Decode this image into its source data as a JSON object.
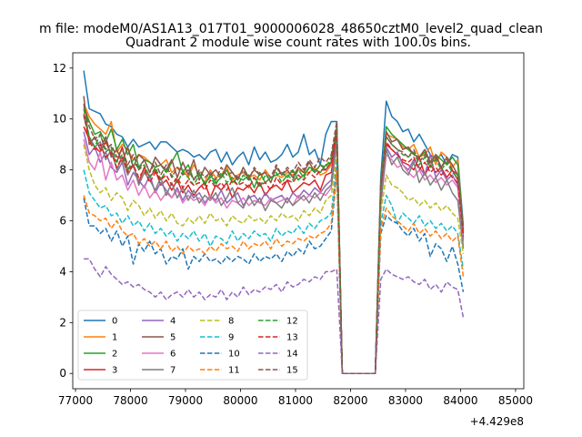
{
  "suptitle": "m file: modeM0/AS1A13_017T01_9000006028_48650cztM0_level2_quad_clean",
  "chart_data": {
    "type": "line",
    "title": "Quadrant 2 module wise count rates with 100.0s bins.",
    "xlabel": "",
    "ylabel": "",
    "x_offset_text": "+4.429e8",
    "xlim": [
      76950,
      85150
    ],
    "ylim": [
      -0.6,
      12.6
    ],
    "xticks": [
      77000,
      78000,
      79000,
      80000,
      81000,
      82000,
      83000,
      84000,
      85000
    ],
    "yticks": [
      0,
      2,
      4,
      6,
      8,
      10,
      12
    ],
    "legend": {
      "position": "lower-left",
      "ncol": 4
    },
    "x_start": 77150,
    "x_step": 100,
    "series": [
      {
        "name": "0",
        "color": "#1f77b4",
        "style": "solid",
        "values": [
          11.9,
          10.4,
          10.3,
          10.2,
          9.8,
          9.7,
          9.4,
          9.3,
          8.9,
          9.2,
          8.9,
          9.0,
          9.1,
          8.8,
          9.1,
          9.1,
          8.9,
          8.7,
          8.8,
          8.7,
          8.5,
          8.6,
          8.4,
          8.7,
          8.8,
          8.3,
          8.7,
          8.2,
          8.5,
          8.7,
          8.2,
          8.9,
          8.4,
          8.7,
          8.3,
          8.4,
          8.6,
          9.0,
          8.5,
          8.7,
          9.4,
          8.6,
          8.8,
          8.2,
          9.4,
          9.9,
          9.9,
          0,
          0,
          0,
          0,
          0,
          0,
          0,
          7.7,
          10.7,
          10.1,
          9.9,
          9.5,
          9.6,
          9.1,
          9.4,
          9.0,
          8.6,
          8.4,
          8.6,
          8.2,
          8.6,
          8.5,
          5.8
        ]
      },
      {
        "name": "1",
        "color": "#ff7f0e",
        "style": "solid",
        "values": [
          10.6,
          10.1,
          9.8,
          9.6,
          9.4,
          9.9,
          8.7,
          9.0,
          8.8,
          8.4,
          8.6,
          8.5,
          8.3,
          8.1,
          8.2,
          8.4,
          7.9,
          8.1,
          8.0,
          7.7,
          8.2,
          7.8,
          7.5,
          8.0,
          7.7,
          7.8,
          8.1,
          7.6,
          7.8,
          7.9,
          7.7,
          7.8,
          7.6,
          8.0,
          7.7,
          7.8,
          7.7,
          7.9,
          7.8,
          8.0,
          7.9,
          7.9,
          8.1,
          7.8,
          7.9,
          8.2,
          9.6,
          0,
          0,
          0,
          0,
          0,
          0,
          0,
          7.3,
          9.4,
          9.3,
          9.2,
          8.9,
          8.8,
          9.0,
          8.5,
          8.6,
          8.9,
          8.2,
          8.7,
          8.5,
          8.1,
          8.4,
          5.5
        ]
      },
      {
        "name": "2",
        "color": "#2ca02c",
        "style": "solid",
        "values": [
          10.5,
          9.9,
          9.4,
          9.5,
          9.1,
          9.6,
          8.8,
          9.2,
          8.6,
          9.0,
          8.1,
          8.4,
          8.3,
          8.1,
          8.2,
          7.9,
          8.3,
          8.7,
          7.9,
          8.2,
          7.6,
          7.9,
          7.4,
          7.8,
          7.5,
          7.7,
          8.0,
          7.5,
          7.7,
          7.6,
          7.8,
          7.3,
          7.9,
          7.5,
          7.7,
          7.8,
          7.9,
          7.7,
          8.0,
          7.6,
          7.8,
          8.1,
          8.0,
          7.9,
          8.2,
          8.3,
          9.4,
          0,
          0,
          0,
          0,
          0,
          0,
          0,
          7.2,
          9.7,
          9.4,
          9.2,
          9.0,
          8.8,
          8.6,
          8.5,
          8.7,
          8.3,
          8.6,
          8.4,
          8.2,
          8.5,
          8.2,
          5.6
        ]
      },
      {
        "name": "3",
        "color": "#d62728",
        "style": "solid",
        "values": [
          9.7,
          9.2,
          8.9,
          8.7,
          9.1,
          8.6,
          8.3,
          8.9,
          8.0,
          8.2,
          7.5,
          8.1,
          7.7,
          8.0,
          7.4,
          7.6,
          7.2,
          7.6,
          7.1,
          7.4,
          7.0,
          7.3,
          7.5,
          6.9,
          7.4,
          7.2,
          7.5,
          6.9,
          7.3,
          7.2,
          7.4,
          7.1,
          7.5,
          7.0,
          7.3,
          7.4,
          7.2,
          7.6,
          7.1,
          7.3,
          7.5,
          7.4,
          7.6,
          7.2,
          7.8,
          7.9,
          9.3,
          0,
          0,
          0,
          0,
          0,
          0,
          0,
          6.9,
          9.0,
          8.8,
          8.6,
          8.3,
          8.2,
          8.0,
          8.5,
          7.8,
          8.2,
          7.9,
          8.1,
          7.7,
          8.0,
          7.6,
          5.3
        ]
      },
      {
        "name": "4",
        "color": "#9467bd",
        "style": "solid",
        "values": [
          9.5,
          8.6,
          8.9,
          8.3,
          8.7,
          8.1,
          7.9,
          8.3,
          7.4,
          7.9,
          7.6,
          7.3,
          7.8,
          7.1,
          7.5,
          7.2,
          6.9,
          7.3,
          6.8,
          7.2,
          6.9,
          7.1,
          6.7,
          7.0,
          6.8,
          7.2,
          6.7,
          6.9,
          7.1,
          6.6,
          6.9,
          7.0,
          6.7,
          7.1,
          6.8,
          6.9,
          7.0,
          6.7,
          7.1,
          6.9,
          7.2,
          7.0,
          7.3,
          7.1,
          7.4,
          7.6,
          9.2,
          0,
          0,
          0,
          0,
          0,
          0,
          0,
          6.8,
          8.9,
          8.5,
          8.7,
          8.2,
          8.0,
          8.4,
          8.1,
          7.8,
          8.6,
          7.7,
          8.0,
          7.6,
          7.8,
          7.4,
          5.2
        ]
      },
      {
        "name": "5",
        "color": "#8c564b",
        "style": "solid",
        "values": [
          10.9,
          9.0,
          9.3,
          8.8,
          9.3,
          8.5,
          8.8,
          8.3,
          8.9,
          8.1,
          8.6,
          8.4,
          7.9,
          8.5,
          8.2,
          8.0,
          8.4,
          7.7,
          8.3,
          7.8,
          8.4,
          7.6,
          8.1,
          7.8,
          8.0,
          7.7,
          8.2,
          7.9,
          7.6,
          8.1,
          7.7,
          8.0,
          7.8,
          7.9,
          7.5,
          8.1,
          7.8,
          8.0,
          7.7,
          8.1,
          7.9,
          8.3,
          7.9,
          8.2,
          8.0,
          8.3,
          9.7,
          0,
          0,
          0,
          0,
          0,
          0,
          0,
          7.4,
          9.5,
          9.1,
          9.2,
          8.8,
          8.9,
          8.6,
          8.5,
          8.8,
          8.3,
          8.6,
          8.1,
          8.5,
          8.2,
          7.8,
          5.5
        ]
      },
      {
        "name": "6",
        "color": "#e377c2",
        "style": "solid",
        "values": [
          9.2,
          8.3,
          8.0,
          8.7,
          7.6,
          8.3,
          7.6,
          7.8,
          7.2,
          7.6,
          7.0,
          7.4,
          6.9,
          7.2,
          6.8,
          7.1,
          6.9,
          7.2,
          6.7,
          7.0,
          6.8,
          6.9,
          6.6,
          7.0,
          6.7,
          6.9,
          6.5,
          6.8,
          6.7,
          6.9,
          6.6,
          6.8,
          6.7,
          6.6,
          6.9,
          6.7,
          6.8,
          6.9,
          6.6,
          7.0,
          6.8,
          7.0,
          6.9,
          7.1,
          7.0,
          7.3,
          9.0,
          0,
          0,
          0,
          0,
          0,
          0,
          0,
          6.6,
          8.6,
          8.4,
          8.1,
          8.2,
          7.9,
          7.7,
          8.0,
          7.6,
          7.8,
          7.5,
          7.7,
          7.4,
          7.6,
          7.3,
          5.0
        ]
      },
      {
        "name": "7",
        "color": "#7f7f7f",
        "style": "solid",
        "values": [
          10.1,
          9.3,
          8.9,
          9.1,
          8.4,
          8.8,
          8.0,
          8.5,
          7.8,
          8.2,
          7.4,
          7.9,
          7.6,
          7.2,
          7.7,
          7.0,
          7.5,
          6.9,
          7.3,
          6.8,
          7.2,
          6.7,
          7.0,
          6.8,
          7.1,
          6.6,
          6.9,
          7.3,
          6.7,
          6.5,
          7.0,
          6.6,
          6.9,
          6.4,
          6.8,
          6.7,
          6.5,
          6.9,
          6.6,
          6.8,
          7.0,
          6.7,
          7.1,
          6.8,
          7.2,
          7.4,
          9.1,
          0,
          0,
          0,
          0,
          0,
          0,
          0,
          6.7,
          8.8,
          8.2,
          8.5,
          8.0,
          7.8,
          8.3,
          7.5,
          7.9,
          7.4,
          7.7,
          7.2,
          7.6,
          7.1,
          6.8,
          4.9
        ]
      },
      {
        "name": "8",
        "color": "#bcbd22",
        "style": "dashed",
        "values": [
          9.0,
          8.0,
          7.4,
          7.1,
          7.3,
          6.8,
          7.1,
          6.9,
          6.4,
          6.8,
          6.6,
          6.2,
          6.5,
          6.1,
          6.4,
          6.0,
          6.3,
          5.9,
          5.8,
          6.1,
          5.9,
          6.2,
          5.9,
          6.3,
          6.0,
          6.1,
          5.8,
          6.2,
          6.0,
          5.9,
          6.2,
          6.0,
          6.1,
          5.9,
          6.2,
          6.0,
          6.3,
          6.1,
          6.2,
          6.0,
          6.4,
          6.2,
          6.5,
          6.3,
          6.8,
          7.0,
          8.6,
          0,
          0,
          0,
          0,
          0,
          0,
          0,
          6.3,
          7.8,
          7.4,
          7.3,
          7.1,
          6.8,
          6.9,
          6.6,
          6.8,
          6.5,
          6.7,
          6.4,
          6.6,
          6.3,
          6.1,
          4.7
        ]
      },
      {
        "name": "9",
        "color": "#17becf",
        "style": "dashed",
        "values": [
          8.0,
          7.1,
          6.8,
          6.5,
          6.6,
          6.2,
          6.3,
          5.9,
          6.2,
          5.8,
          6.0,
          5.6,
          5.9,
          5.5,
          5.7,
          5.4,
          5.6,
          5.2,
          5.5,
          5.3,
          5.6,
          5.2,
          5.5,
          5.0,
          5.4,
          5.3,
          5.1,
          5.6,
          5.2,
          5.5,
          5.3,
          5.6,
          5.4,
          5.5,
          5.2,
          5.7,
          5.4,
          5.6,
          5.5,
          5.8,
          5.5,
          5.9,
          5.7,
          6.0,
          6.1,
          6.3,
          8.3,
          0,
          0,
          0,
          0,
          0,
          0,
          0,
          5.9,
          7.0,
          6.6,
          5.9,
          6.3,
          6.1,
          5.9,
          6.2,
          5.8,
          6.0,
          5.7,
          5.9,
          5.6,
          5.8,
          5.5,
          4.1
        ]
      },
      {
        "name": "10",
        "color": "#1f77b4",
        "style": "dashed",
        "values": [
          6.9,
          5.8,
          5.8,
          5.5,
          5.7,
          5.2,
          5.6,
          5.0,
          5.4,
          4.3,
          5.1,
          4.8,
          5.2,
          4.7,
          4.9,
          4.3,
          4.6,
          4.5,
          4.9,
          4.1,
          4.6,
          4.4,
          4.7,
          4.4,
          4.5,
          4.3,
          4.6,
          4.4,
          4.6,
          4.5,
          4.3,
          4.7,
          4.4,
          4.6,
          4.5,
          4.7,
          4.4,
          4.8,
          4.6,
          4.9,
          4.7,
          5.2,
          4.9,
          5.0,
          5.3,
          5.6,
          7.9,
          0,
          0,
          0,
          0,
          0,
          0,
          0,
          5.5,
          6.2,
          6.0,
          5.9,
          5.6,
          5.4,
          5.7,
          5.2,
          5.5,
          4.6,
          5.1,
          4.9,
          4.4,
          5.0,
          4.3,
          3.2
        ]
      },
      {
        "name": "11",
        "color": "#ff7f0e",
        "style": "dashed",
        "values": [
          7.0,
          6.3,
          6.2,
          6.0,
          6.1,
          5.7,
          6.0,
          5.6,
          5.4,
          5.5,
          5.1,
          5.3,
          5.0,
          5.2,
          4.9,
          5.2,
          4.8,
          5.0,
          4.7,
          5.0,
          4.8,
          4.9,
          4.7,
          5.0,
          4.8,
          5.1,
          4.9,
          5.0,
          4.8,
          5.2,
          4.9,
          5.1,
          5.0,
          5.2,
          4.9,
          5.3,
          5.0,
          5.2,
          5.1,
          5.3,
          5.2,
          5.4,
          5.3,
          5.5,
          5.6,
          5.9,
          8.0,
          0,
          0,
          0,
          0,
          0,
          0,
          0,
          5.7,
          6.5,
          6.2,
          6.0,
          5.8,
          5.6,
          5.9,
          5.5,
          5.7,
          5.4,
          5.6,
          5.3,
          5.5,
          5.2,
          5.4,
          3.8
        ]
      },
      {
        "name": "12",
        "color": "#2ca02c",
        "style": "dashed",
        "values": [
          10.4,
          9.3,
          8.9,
          9.4,
          8.7,
          8.9,
          8.3,
          8.6,
          8.0,
          8.4,
          8.0,
          8.2,
          7.7,
          8.1,
          7.6,
          8.0,
          7.8,
          7.5,
          7.9,
          7.7,
          7.4,
          7.8,
          7.5,
          7.7,
          7.4,
          7.9,
          7.5,
          7.7,
          7.4,
          7.8,
          7.6,
          7.7,
          7.3,
          7.8,
          7.6,
          7.9,
          7.5,
          7.8,
          7.6,
          8.0,
          7.7,
          8.1,
          7.9,
          8.2,
          8.1,
          8.5,
          9.6,
          0,
          0,
          0,
          0,
          0,
          0,
          0,
          7.6,
          9.3,
          9.0,
          8.8,
          8.6,
          8.5,
          8.7,
          8.2,
          8.5,
          8.1,
          8.4,
          8.0,
          8.3,
          7.9,
          7.7,
          5.6
        ]
      },
      {
        "name": "13",
        "color": "#d62728",
        "style": "dashed",
        "values": [
          10.2,
          9.1,
          8.8,
          9.0,
          8.5,
          8.7,
          8.1,
          8.5,
          7.9,
          8.2,
          7.7,
          8.0,
          7.5,
          7.9,
          7.6,
          7.8,
          7.4,
          7.7,
          7.3,
          7.6,
          7.4,
          7.5,
          7.2,
          7.6,
          7.3,
          7.5,
          7.2,
          7.6,
          7.4,
          7.5,
          7.3,
          7.7,
          7.4,
          7.5,
          7.2,
          7.7,
          7.4,
          7.6,
          7.5,
          7.8,
          7.6,
          7.9,
          7.7,
          8.0,
          8.0,
          8.3,
          9.5,
          0,
          0,
          0,
          0,
          0,
          0,
          0,
          7.4,
          9.1,
          8.8,
          8.6,
          8.4,
          8.3,
          8.5,
          8.0,
          8.3,
          7.9,
          8.1,
          7.8,
          8.0,
          7.7,
          7.5,
          5.4
        ]
      },
      {
        "name": "14",
        "color": "#9467bd",
        "style": "dashed",
        "values": [
          4.5,
          4.5,
          4.1,
          3.8,
          4.2,
          3.9,
          3.7,
          3.5,
          3.6,
          3.4,
          3.5,
          3.3,
          3.2,
          3.0,
          3.2,
          2.9,
          3.1,
          3.2,
          3.0,
          3.3,
          3.0,
          3.2,
          2.9,
          3.1,
          3.0,
          3.3,
          2.9,
          3.2,
          3.0,
          3.4,
          3.1,
          3.3,
          3.2,
          3.4,
          3.3,
          3.5,
          3.2,
          3.6,
          3.4,
          3.5,
          3.7,
          3.6,
          3.8,
          3.7,
          4.0,
          4.0,
          4.1,
          0,
          0,
          0,
          0,
          0,
          0,
          0,
          3.7,
          4.1,
          3.9,
          3.8,
          3.7,
          3.8,
          3.6,
          3.5,
          3.7,
          3.3,
          3.5,
          3.2,
          3.6,
          3.4,
          3.3,
          2.2
        ]
      },
      {
        "name": "15",
        "color": "#8c564b",
        "style": "dashed",
        "values": [
          10.6,
          9.7,
          9.2,
          9.4,
          8.8,
          9.0,
          8.5,
          8.8,
          8.2,
          8.6,
          8.0,
          8.4,
          7.9,
          8.3,
          7.8,
          8.2,
          7.7,
          8.1,
          7.8,
          8.0,
          7.6,
          8.0,
          7.7,
          7.9,
          7.6,
          8.1,
          7.8,
          7.9,
          7.7,
          8.0,
          7.6,
          8.1,
          7.8,
          7.9,
          7.7,
          8.2,
          7.8,
          8.1,
          7.9,
          8.3,
          8.0,
          8.4,
          8.1,
          8.5,
          8.3,
          8.6,
          9.9,
          0,
          0,
          0,
          0,
          0,
          0,
          0,
          7.5,
          9.3,
          9.0,
          8.8,
          8.7,
          8.5,
          8.8,
          8.3,
          8.6,
          8.2,
          8.5,
          8.1,
          8.4,
          8.0,
          7.8,
          5.7
        ]
      }
    ]
  }
}
